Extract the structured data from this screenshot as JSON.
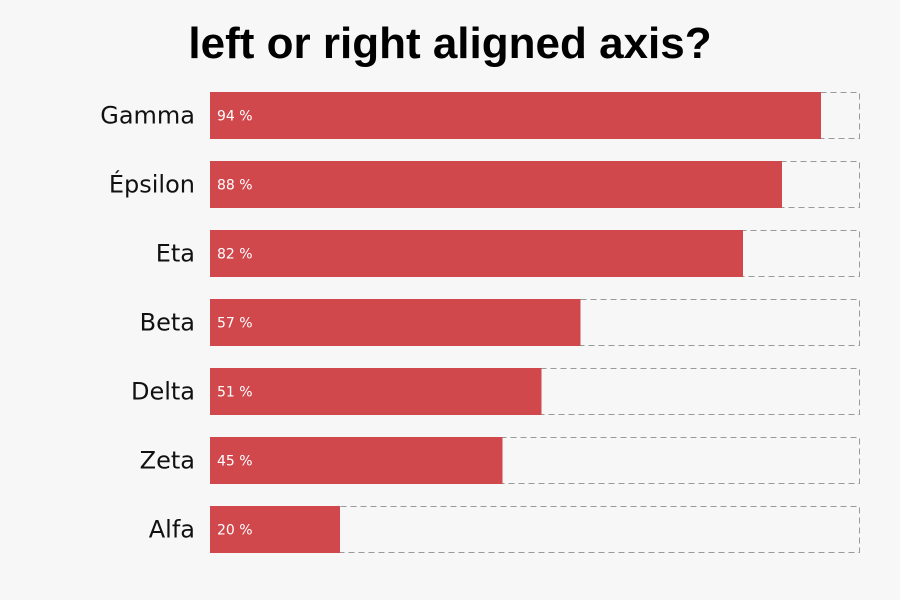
{
  "chart_data": {
    "type": "bar",
    "orientation": "horizontal",
    "title": "left or right aligned axis?",
    "categories": [
      "Gamma",
      "Épsilon",
      "Eta",
      "Beta",
      "Delta",
      "Zeta",
      "Alfa"
    ],
    "values": [
      94,
      88,
      82,
      57,
      51,
      45,
      20
    ],
    "value_labels": [
      "94 %",
      "88 %",
      "82 %",
      "57 %",
      "51 %",
      "45 %",
      "20 %"
    ],
    "xlim": [
      0,
      100
    ],
    "unit": "%",
    "grid": false,
    "legend": "none",
    "colors": {
      "bar": "#d0474c",
      "track_border": "#9a9a9a",
      "background": "#f8f7f7",
      "label_inside": "#ffffff",
      "category_label": "#111111"
    }
  }
}
